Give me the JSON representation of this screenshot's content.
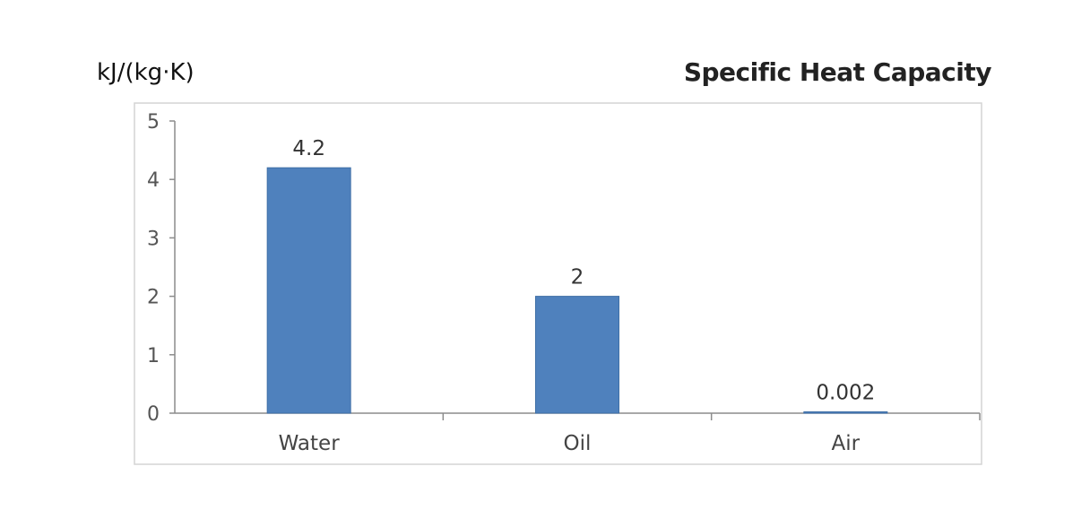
{
  "chart_data": {
    "type": "bar",
    "title": "Specific Heat Capacity",
    "ylabel": "kJ/(kg·K)",
    "xlabel": "",
    "categories": [
      "Water",
      "Oil",
      "Air"
    ],
    "values": [
      4.2,
      2,
      0.002
    ],
    "data_labels": [
      "4.2",
      "2",
      "0.002"
    ],
    "ylim": [
      0,
      5
    ],
    "yticks": [
      "0",
      "1",
      "2",
      "3",
      "4",
      "5"
    ],
    "bar_color": "#4F81BD",
    "grid": false,
    "legend": "none"
  }
}
